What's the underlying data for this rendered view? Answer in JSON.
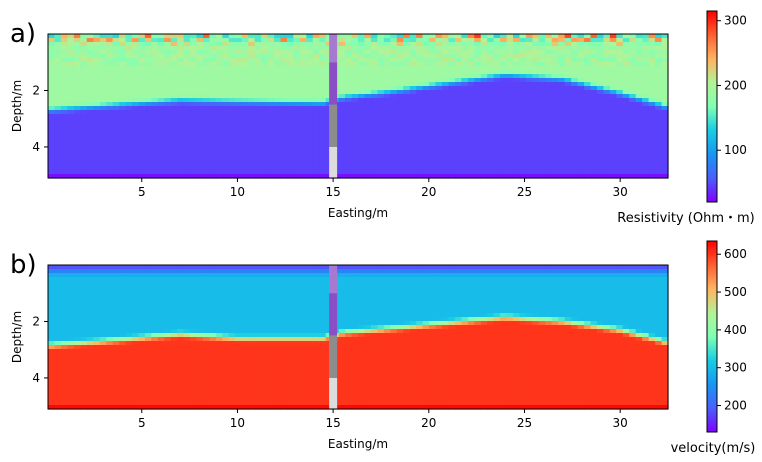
{
  "chart_data": [
    {
      "type": "heatmap",
      "panel_label": "a)",
      "xlabel": "Easting/m",
      "ylabel": "Depth/m",
      "x_ticks": [
        5,
        10,
        15,
        20,
        25,
        30
      ],
      "y_ticks": [
        2,
        4
      ],
      "xlim": [
        0.1,
        32.5
      ],
      "ylim": [
        5.1,
        0.0
      ],
      "colorbar": {
        "label": "Resistivity (Ohm・m)",
        "ticks": [
          100,
          200,
          300
        ],
        "range": [
          20,
          315
        ],
        "colormap": "rainbow"
      },
      "interface_depth_profile": {
        "x": [
          0.1,
          3,
          7,
          10,
          14.5,
          15.5,
          18,
          21,
          24,
          27,
          30,
          32.5
        ],
        "depth": [
          2.7,
          2.55,
          2.35,
          2.4,
          2.45,
          2.25,
          2.05,
          1.75,
          1.45,
          1.6,
          2.1,
          2.6
        ]
      },
      "values_by_layer": {
        "surface_patchy": [
          70,
          310
        ],
        "upper_layer": 190,
        "lower_layer": 45,
        "bottom_edge": 25
      },
      "borehole_marker": {
        "x": 15,
        "segments": [
          {
            "from": 0.0,
            "to": 1.0,
            "color": "#a77ad2"
          },
          {
            "from": 1.0,
            "to": 2.5,
            "color": "#8a4fc4"
          },
          {
            "from": 2.5,
            "to": 4.0,
            "color": "#8c8c8c"
          },
          {
            "from": 4.0,
            "to": 5.1,
            "color": "#dcdcdc"
          }
        ]
      }
    },
    {
      "type": "heatmap",
      "panel_label": "b)",
      "xlabel": "Easting/m",
      "ylabel": "Depth/m",
      "x_ticks": [
        5,
        10,
        15,
        20,
        25,
        30
      ],
      "y_ticks": [
        2,
        4
      ],
      "xlim": [
        0.1,
        32.5
      ],
      "ylim": [
        5.1,
        0.0
      ],
      "colorbar": {
        "label": "velocity(m/s)",
        "ticks": [
          200,
          300,
          400,
          500,
          600
        ],
        "range": [
          130,
          635
        ],
        "colormap": "rainbow"
      },
      "interface_depth_profile": {
        "x": [
          0.1,
          3,
          7,
          10,
          14.5,
          15.5,
          18,
          21,
          24,
          27,
          30,
          32.5
        ],
        "depth": [
          2.85,
          2.7,
          2.45,
          2.6,
          2.6,
          2.4,
          2.25,
          2.05,
          1.85,
          2.0,
          2.3,
          2.75
        ]
      },
      "values_by_layer": {
        "top_edge": 160,
        "upper_layer": 300,
        "lower_layer": 600,
        "bottom_edge": 630
      },
      "borehole_marker": {
        "x": 15,
        "segments": [
          {
            "from": 0.0,
            "to": 1.0,
            "color": "#a77ad2"
          },
          {
            "from": 1.0,
            "to": 2.5,
            "color": "#8a4fc4"
          },
          {
            "from": 2.5,
            "to": 4.0,
            "color": "#8c8c8c"
          },
          {
            "from": 4.0,
            "to": 5.1,
            "color": "#dcdcdc"
          }
        ]
      }
    }
  ]
}
